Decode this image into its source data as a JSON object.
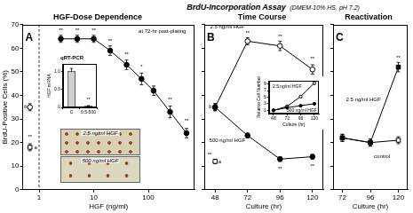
{
  "title": "BrdU-Incorporation Assay",
  "subtitle": "(DMEM-10% HS, pH 7.2)",
  "chart_data": [
    {
      "type": "line",
      "panel": "A",
      "title": "HGF-Dose Dependence",
      "x_label": "HGF (ng/ml)",
      "y_label": "BrdU-Positive Cells (%)",
      "log": "x",
      "grid": false,
      "xlim": [
        0.5,
        700
      ],
      "xticks": [
        1,
        10,
        100
      ],
      "ylim": [
        0,
        70
      ],
      "yticks": [
        0,
        10,
        20,
        30,
        40,
        50,
        60,
        70
      ],
      "series": [
        {
          "color": "#000000",
          "marker": "circle",
          "line_style": "solid",
          "x": [
            2.5,
            5,
            10,
            20,
            40,
            75,
            125,
            250,
            500
          ],
          "values": [
            64,
            64,
            64,
            59,
            53,
            47,
            42,
            33,
            24
          ],
          "errors": [
            1.5,
            1.5,
            1.5,
            2,
            2,
            2.5,
            2,
            2.5,
            2
          ]
        },
        {
          "type": "scatter",
          "color": "#000000",
          "marker": "circle_open",
          "x": [
            0.68
          ],
          "values": [
            35
          ],
          "errors": [
            1.5
          ]
        },
        {
          "type": "scatter",
          "color": "#000000",
          "marker": "square_open",
          "x": [
            0.68
          ],
          "values": [
            18
          ],
          "errors": [
            1.5
          ]
        }
      ],
      "annotations": [
        {
          "text": "**",
          "x": 2.5,
          "y": 67.5
        },
        {
          "text": "**",
          "x": 5,
          "y": 67.5
        },
        {
          "text": "**",
          "x": 10,
          "y": 67.5
        },
        {
          "text": "**",
          "x": 20,
          "y": 63
        },
        {
          "text": "**",
          "x": 40,
          "y": 57.5
        },
        {
          "text": "*",
          "x": 75,
          "y": 52
        },
        {
          "text": "**",
          "x": 250,
          "y": 38
        },
        {
          "text": "**",
          "x": 500,
          "y": 29
        },
        {
          "text": "b",
          "x": 0.57,
          "y": 35
        },
        {
          "text": "a",
          "x": 0.87,
          "y": 18
        },
        {
          "text": "**",
          "x": 0.68,
          "y": 22.5
        },
        {
          "text": "at 72-hr post-plating",
          "x": 180,
          "y": 67
        }
      ]
    },
    {
      "type": "bar",
      "title": "qRT-PCR",
      "y_label": "HGF mRNA",
      "grid": false,
      "categories": [
        "C",
        "0.5-500"
      ],
      "values": [
        1.0,
        0.04
      ],
      "errors": [
        0.08,
        0.01
      ],
      "color": "#d0d0d0",
      "ylim": [
        0,
        1.2
      ],
      "yticks": [
        0,
        0.5,
        {
          "value": 1,
          "label": "1.0"
        }
      ],
      "annotations": [
        {
          "text": "**",
          "x": "0.5-500",
          "y": 0.2
        }
      ]
    },
    {
      "type": "line",
      "panel": "B",
      "title": "Time Course",
      "x_label": "Culture (hr)",
      "tick_labels": "x",
      "grid": false,
      "xlim": [
        40,
        128
      ],
      "xticks": [
        48,
        72,
        96,
        120
      ],
      "ylim": [
        0,
        70
      ],
      "yticks": [
        0,
        10,
        20,
        30,
        40,
        50,
        60,
        70
      ],
      "series": [
        {
          "color": "#000000",
          "marker": "circle",
          "line_style": "solid",
          "x": [
            48,
            72,
            96,
            120
          ],
          "values": [
            35,
            23,
            13,
            14
          ],
          "errors": [
            1.5,
            1,
            1,
            1
          ]
        },
        {
          "color": "#000000",
          "marker": "circle_open",
          "line_style": "solid",
          "x": [
            48,
            72,
            96,
            120
          ],
          "values": [
            35,
            63,
            61,
            51
          ],
          "errors": [
            1.5,
            1.5,
            2,
            2
          ]
        },
        {
          "type": "scatter",
          "color": "#000000",
          "marker": "square_open",
          "x": [
            48
          ],
          "values": [
            12
          ],
          "errors": [
            1
          ]
        }
      ],
      "annotations": [
        {
          "text": "2.5 ng/ml HGF",
          "x": 57,
          "y": 69
        },
        {
          "text": "500 ng/ml HGF",
          "x": 57,
          "y": 21
        },
        {
          "text": "**",
          "x": 72,
          "y": 66.5
        },
        {
          "text": "**",
          "x": 96,
          "y": 65
        },
        {
          "text": "**",
          "x": 120,
          "y": 55.5
        },
        {
          "text": "**",
          "x": 96,
          "y": 9
        },
        {
          "text": "**",
          "x": 120,
          "y": 10
        },
        {
          "text": "b",
          "x": 44.5,
          "y": 35
        },
        {
          "text": "**",
          "x": 44,
          "y": 15
        },
        {
          "text": "a",
          "x": 51.5,
          "y": 12
        }
      ]
    },
    {
      "type": "line",
      "x_label": "Culture (hr)",
      "y_label": "Relative Cell Number",
      "grid": false,
      "xlim": [
        40,
        128
      ],
      "xticks": [
        48,
        72,
        96,
        120
      ],
      "ylim": [
        0,
        10
      ],
      "yticks": [
        1,
        3,
        5,
        7,
        9
      ],
      "series": [
        {
          "color": "#000000",
          "marker": "circle",
          "line_style": "solid",
          "x": [
            48,
            72,
            96,
            120
          ],
          "values": [
            1,
            1.8,
            2.4,
            3.0
          ],
          "errors": [
            0.1,
            0.1,
            0.2,
            0.2
          ]
        },
        {
          "color": "#000000",
          "marker": "circle_open",
          "line_style": "solid",
          "x": [
            48,
            72,
            96,
            120
          ],
          "values": [
            1,
            2.2,
            5.2,
            9.3
          ],
          "errors": [
            0.1,
            0.2,
            0.3,
            0.4
          ]
        }
      ],
      "annotations": [
        {
          "text": "2.5 ng/ml HGF",
          "x": 72,
          "y": 8.3
        },
        {
          "text": "500 ng/ml HGF",
          "x": 98,
          "y": 1.0
        }
      ]
    },
    {
      "type": "line",
      "panel": "C",
      "title": "Reactivation",
      "x_label": "Culture (hr)",
      "tick_labels": "x",
      "grid": false,
      "xlim": [
        64,
        128
      ],
      "xticks": [
        72,
        96,
        120
      ],
      "ylim": [
        0,
        70
      ],
      "yticks": [
        0,
        10,
        20,
        30,
        40,
        50,
        60,
        70
      ],
      "series": [
        {
          "color": "#000000",
          "marker": "square",
          "line_style": "solid",
          "x": [
            72,
            96,
            120
          ],
          "values": [
            22,
            20,
            52
          ],
          "errors": [
            1.5,
            1.5,
            2
          ]
        },
        {
          "color": "#000000",
          "marker": "square_open",
          "line_style": "solid",
          "x": [
            72,
            96,
            120
          ],
          "values": [
            22,
            20,
            21
          ],
          "errors": [
            1.5,
            1.5,
            1.5
          ]
        }
      ],
      "annotations": [
        {
          "text": "2.5 ng/ml HGF",
          "x": 90,
          "y": 38
        },
        {
          "text": "control",
          "x": 106,
          "y": 14
        },
        {
          "text": "**",
          "x": 120,
          "y": 56
        }
      ]
    }
  ],
  "photos": [
    {
      "caption": "2.5 ng/ml HGF"
    },
    {
      "caption": "500 ng/ml HGF"
    }
  ]
}
